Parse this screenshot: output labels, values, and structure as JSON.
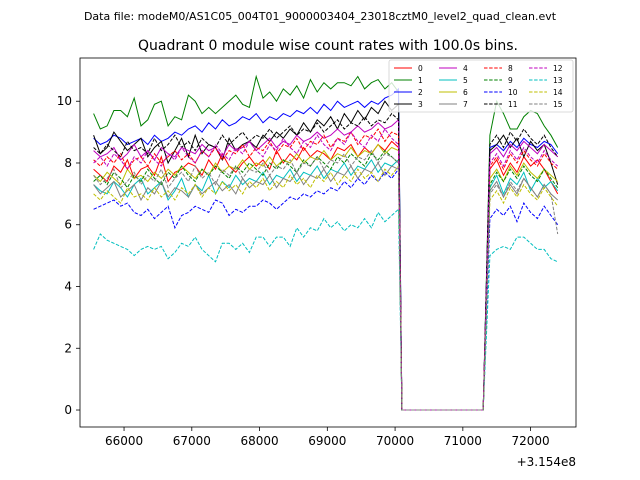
{
  "chart_data": {
    "type": "line",
    "suptitle": "Data file: modeM0/AS1C05_004T01_9000003404_23018cztM0_level2_quad_clean.evt",
    "title": "Quadrant 0 module wise count rates with 100.0s bins.",
    "xlabel": "",
    "ylabel": "",
    "x_offset_label": "+3.154e8",
    "xlim": [
      65350,
      72670
    ],
    "ylim": [
      -0.55,
      11.4
    ],
    "xticks": [
      66000,
      67000,
      68000,
      69000,
      70000,
      71000,
      72000
    ],
    "xtick_labels": [
      "66000",
      "67000",
      "68000",
      "69000",
      "70000",
      "71000",
      "72000"
    ],
    "yticks": [
      0,
      2,
      4,
      6,
      8,
      10
    ],
    "ytick_labels": [
      "0",
      "2",
      "4",
      "6",
      "8",
      "10"
    ],
    "gap": {
      "start": 70100,
      "end": 71300
    },
    "legend": {
      "location": "top-right",
      "columns": 4
    },
    "series": [
      {
        "name": "0",
        "color": "#ff0000",
        "dash": "solid",
        "x_start": 65550,
        "x_end": 72400,
        "step": 100,
        "before": [
          7.8,
          7.6,
          7.4,
          7.9,
          7.7,
          8.1,
          7.5,
          7.8,
          7.9,
          7.6,
          8.2,
          7.4,
          7.7,
          7.8,
          8.0,
          7.9,
          7.6,
          8.1,
          7.8,
          8.3,
          7.9,
          7.7,
          8.0,
          8.2,
          7.9,
          8.1,
          7.8,
          8.4,
          8.0,
          8.3,
          8.1,
          8.5,
          8.2,
          8.4,
          8.3,
          8.1,
          8.5,
          8.4,
          8.6,
          8.2,
          8.5,
          8.3,
          8.6,
          8.4,
          8.7,
          8.5
        ],
        "after": [
          7.8,
          8.1,
          7.6,
          8.0,
          7.7,
          8.2,
          7.9,
          8.1,
          7.8,
          7.4,
          7.0
        ]
      },
      {
        "name": "1",
        "color": "#008000",
        "dash": "solid",
        "x_start": 65550,
        "x_end": 72400,
        "step": 100,
        "before": [
          9.6,
          9.1,
          9.2,
          9.7,
          9.7,
          9.5,
          10.1,
          9.2,
          9.4,
          9.9,
          10.0,
          9.2,
          9.5,
          9.4,
          10.2,
          10.0,
          9.6,
          9.8,
          9.6,
          9.8,
          10.0,
          10.2,
          9.9,
          9.8,
          10.8,
          10.1,
          10.3,
          10.0,
          10.4,
          10.2,
          10.5,
          10.1,
          10.7,
          10.3,
          10.6,
          10.4,
          10.6,
          10.6,
          10.5,
          10.8,
          10.4,
          10.6,
          10.7,
          10.4,
          10.6,
          10.3
        ],
        "after": [
          8.9,
          10.0,
          9.6,
          9.1,
          9.1,
          9.5,
          9.7,
          9.6,
          9.2,
          8.9,
          8.5
        ]
      },
      {
        "name": "2",
        "color": "#0000ff",
        "dash": "solid",
        "x_start": 65550,
        "x_end": 72400,
        "step": 100,
        "before": [
          8.8,
          8.6,
          8.7,
          8.9,
          8.8,
          8.6,
          8.7,
          8.8,
          8.6,
          8.9,
          8.7,
          8.8,
          9.0,
          8.9,
          9.1,
          9.2,
          9.0,
          9.3,
          9.1,
          9.4,
          9.2,
          9.3,
          9.5,
          9.4,
          9.6,
          9.3,
          9.5,
          9.4,
          9.6,
          9.5,
          9.7,
          9.6,
          9.8,
          9.6,
          9.9,
          9.7,
          10.0,
          9.8,
          9.9,
          10.0,
          9.8,
          10.0,
          9.9,
          10.1,
          10.2,
          10.4
        ],
        "after": [
          8.5,
          8.6,
          8.4,
          8.7,
          8.5,
          8.8,
          8.6,
          8.5,
          8.7,
          8.6,
          8.3
        ]
      },
      {
        "name": "3",
        "color": "#000000",
        "dash": "solid",
        "x_start": 65550,
        "x_end": 72400,
        "step": 100,
        "before": [
          8.9,
          8.3,
          8.5,
          9.0,
          8.7,
          8.4,
          8.6,
          8.8,
          8.2,
          8.5,
          8.7,
          8.0,
          8.4,
          8.8,
          8.2,
          8.9,
          8.3,
          8.6,
          8.5,
          8.1,
          8.8,
          8.4,
          8.6,
          8.7,
          8.5,
          8.9,
          8.7,
          9.0,
          8.8,
          9.1,
          8.9,
          9.3,
          9.0,
          9.4,
          9.2,
          9.5,
          9.1,
          9.6,
          9.3,
          9.7,
          9.4,
          9.8,
          9.6,
          10.0,
          9.7,
          9.9
        ],
        "after": [
          8.4,
          8.6,
          8.9,
          8.5,
          8.8,
          8.2,
          8.7,
          8.4,
          8.6,
          8.0,
          7.3
        ]
      },
      {
        "name": "4",
        "color": "#bf00bf",
        "dash": "solid",
        "x_start": 65550,
        "x_end": 72400,
        "step": 100,
        "before": [
          8.4,
          8.2,
          8.3,
          8.5,
          8.1,
          8.3,
          8.6,
          8.2,
          8.4,
          8.1,
          8.5,
          8.3,
          8.2,
          8.5,
          8.4,
          8.3,
          8.6,
          8.4,
          8.5,
          8.2,
          8.6,
          8.4,
          8.5,
          8.7,
          8.4,
          8.6,
          8.8,
          8.5,
          8.7,
          8.6,
          8.9,
          8.7,
          8.8,
          9.0,
          8.8,
          8.9,
          9.1,
          8.9,
          9.0,
          9.2,
          9.0,
          9.1,
          9.3,
          9.1,
          9.2,
          9.4
        ],
        "after": [
          8.3,
          8.5,
          8.2,
          8.6,
          8.4,
          8.7,
          8.5,
          8.3,
          8.6,
          8.4,
          8.2
        ]
      },
      {
        "name": "5",
        "color": "#00bfbf",
        "dash": "solid",
        "x_start": 65550,
        "x_end": 72400,
        "step": 100,
        "before": [
          7.3,
          7.1,
          7.0,
          7.4,
          7.2,
          6.9,
          7.3,
          7.5,
          7.0,
          7.2,
          7.4,
          6.8,
          7.1,
          7.5,
          6.9,
          7.3,
          7.1,
          7.6,
          7.0,
          7.4,
          7.2,
          7.6,
          7.3,
          7.5,
          7.4,
          7.7,
          7.3,
          7.6,
          7.5,
          7.8,
          7.4,
          7.7,
          7.6,
          7.9,
          7.5,
          7.8,
          7.7,
          8.0,
          7.6,
          7.9,
          7.8,
          8.1,
          7.7,
          8.0,
          7.9,
          8.1
        ],
        "after": [
          7.2,
          7.6,
          7.0,
          7.5,
          7.3,
          7.7,
          7.1,
          7.5,
          7.2,
          7.4,
          7.1
        ]
      },
      {
        "name": "6",
        "color": "#bfbf00",
        "dash": "solid",
        "x_start": 65550,
        "x_end": 72400,
        "step": 100,
        "before": [
          7.6,
          7.4,
          7.7,
          7.5,
          7.3,
          7.8,
          7.5,
          7.6,
          7.4,
          7.7,
          7.5,
          7.8,
          7.6,
          7.9,
          7.7,
          7.5,
          7.8,
          7.6,
          8.0,
          7.7,
          7.9,
          7.8,
          8.1,
          7.8,
          8.0,
          7.9,
          8.2,
          7.9,
          8.1,
          8.0,
          8.3,
          8.0,
          8.2,
          8.1,
          8.4,
          8.1,
          8.3,
          8.2,
          8.5,
          8.2,
          8.4,
          8.3,
          8.6,
          8.3,
          8.5,
          8.4
        ],
        "after": [
          7.5,
          7.8,
          7.4,
          7.9,
          7.6,
          8.0,
          7.7,
          7.5,
          7.8,
          7.6,
          7.4
        ]
      },
      {
        "name": "7",
        "color": "#808080",
        "dash": "solid",
        "x_start": 65550,
        "x_end": 72400,
        "step": 100,
        "before": [
          7.3,
          7.0,
          7.2,
          7.4,
          6.9,
          7.1,
          7.3,
          6.8,
          7.2,
          7.0,
          7.4,
          6.9,
          7.2,
          7.1,
          6.9,
          7.3,
          7.0,
          7.2,
          7.4,
          7.1,
          7.3,
          7.0,
          7.5,
          7.2,
          7.4,
          7.3,
          7.6,
          7.2,
          7.5,
          7.4,
          7.7,
          7.3,
          7.6,
          7.5,
          7.8,
          7.4,
          7.7,
          7.6,
          7.9,
          7.5,
          7.8,
          7.7,
          8.0,
          7.6,
          7.9,
          7.8
        ],
        "after": [
          7.1,
          7.4,
          6.9,
          7.3,
          7.0,
          7.5,
          7.2,
          6.9,
          7.3,
          7.0,
          6.8
        ]
      },
      {
        "name": "8",
        "color": "#ff0000",
        "dash": "dashed",
        "x_start": 65550,
        "x_end": 72400,
        "step": 100,
        "before": [
          8.1,
          7.9,
          8.2,
          8.0,
          8.3,
          7.8,
          8.1,
          8.2,
          7.9,
          8.3,
          8.0,
          8.2,
          8.4,
          8.1,
          8.3,
          8.0,
          8.4,
          8.2,
          8.5,
          8.1,
          8.4,
          8.3,
          8.6,
          8.2,
          8.5,
          8.4,
          8.7,
          8.3,
          8.6,
          8.5,
          8.8,
          8.4,
          8.7,
          8.6,
          8.9,
          8.5,
          8.8,
          8.7,
          9.0,
          8.6,
          8.9,
          8.8,
          9.1,
          8.7,
          9.0,
          8.9
        ],
        "after": [
          7.9,
          8.2,
          7.8,
          8.3,
          8.0,
          8.4,
          8.1,
          7.9,
          8.3,
          8.0,
          7.8
        ]
      },
      {
        "name": "9",
        "color": "#008000",
        "dash": "dashed",
        "x_start": 65550,
        "x_end": 72400,
        "step": 100,
        "before": [
          7.4,
          7.6,
          7.3,
          7.7,
          7.5,
          7.2,
          7.6,
          7.4,
          7.8,
          7.5,
          7.3,
          7.7,
          7.5,
          7.9,
          7.6,
          7.4,
          7.8,
          7.6,
          7.9,
          7.7,
          7.5,
          7.9,
          7.7,
          8.0,
          7.8,
          7.6,
          8.0,
          7.8,
          8.1,
          7.9,
          7.7,
          8.1,
          7.9,
          8.2,
          8.0,
          7.8,
          8.2,
          8.0,
          8.3,
          8.1,
          7.9,
          8.3,
          8.1,
          8.4,
          8.2,
          8.0
        ],
        "after": [
          7.3,
          7.7,
          7.4,
          7.8,
          7.5,
          7.9,
          7.6,
          7.4,
          7.8,
          7.5,
          7.2
        ]
      },
      {
        "name": "10",
        "color": "#0000ff",
        "dash": "dashed",
        "x_start": 65550,
        "x_end": 72400,
        "step": 100,
        "before": [
          6.5,
          6.6,
          6.7,
          6.8,
          6.6,
          6.7,
          6.4,
          6.3,
          6.5,
          6.2,
          6.4,
          6.6,
          5.9,
          6.3,
          6.4,
          6.6,
          6.5,
          6.4,
          6.8,
          6.7,
          6.3,
          6.5,
          6.4,
          6.6,
          6.6,
          6.8,
          6.7,
          6.5,
          6.7,
          6.9,
          6.8,
          7.0,
          6.9,
          7.1,
          7.0,
          7.2,
          7.1,
          7.4,
          7.2,
          7.5,
          7.3,
          7.6,
          7.4,
          7.7,
          7.5,
          7.8
        ],
        "after": [
          6.2,
          6.5,
          6.3,
          6.6,
          6.1,
          6.7,
          6.4,
          6.2,
          6.6,
          6.3,
          6.0
        ]
      },
      {
        "name": "11",
        "color": "#000000",
        "dash": "dashed",
        "x_start": 65550,
        "x_end": 72400,
        "step": 100,
        "before": [
          8.5,
          8.3,
          8.6,
          8.4,
          8.2,
          8.7,
          8.4,
          8.5,
          8.3,
          8.8,
          8.4,
          8.6,
          8.9,
          8.5,
          8.7,
          8.4,
          8.8,
          8.6,
          8.5,
          8.9,
          8.6,
          8.8,
          9.0,
          8.7,
          8.9,
          8.8,
          9.1,
          8.8,
          9.0,
          9.2,
          8.9,
          9.1,
          9.0,
          9.3,
          9.0,
          9.2,
          9.4,
          9.1,
          9.3,
          9.2,
          9.5,
          9.2,
          9.4,
          9.3,
          9.6,
          9.4
        ],
        "after": [
          8.6,
          8.9,
          8.5,
          9.0,
          8.7,
          9.1,
          8.8,
          8.6,
          8.9,
          8.5,
          8.2
        ]
      },
      {
        "name": "12",
        "color": "#bf00bf",
        "dash": "dashed",
        "x_start": 65550,
        "x_end": 72400,
        "step": 100,
        "before": [
          8.0,
          8.2,
          7.9,
          8.3,
          8.1,
          7.8,
          8.2,
          8.0,
          8.4,
          8.1,
          7.9,
          8.3,
          8.1,
          8.5,
          8.2,
          8.0,
          8.4,
          8.2,
          8.6,
          8.3,
          8.1,
          8.5,
          8.3,
          8.7,
          8.4,
          8.2,
          8.6,
          8.4,
          8.8,
          8.5,
          8.3,
          8.7,
          8.5,
          8.9,
          8.6,
          8.4,
          8.8,
          8.6,
          9.0,
          8.7,
          8.5,
          8.9,
          8.7,
          9.1,
          8.8,
          8.6
        ],
        "after": [
          8.0,
          8.3,
          7.9,
          8.4,
          8.1,
          8.5,
          8.2,
          8.0,
          8.4,
          8.1,
          7.9
        ]
      },
      {
        "name": "13",
        "color": "#00bfbf",
        "dash": "dashed",
        "x_start": 65550,
        "x_end": 72400,
        "step": 100,
        "before": [
          5.2,
          5.7,
          5.5,
          5.4,
          5.3,
          5.2,
          5.0,
          5.2,
          5.3,
          5.2,
          5.3,
          4.9,
          5.1,
          5.4,
          5.3,
          5.6,
          5.2,
          5.0,
          4.8,
          5.4,
          5.4,
          5.2,
          5.4,
          5.1,
          5.6,
          5.6,
          5.3,
          5.6,
          5.6,
          5.3,
          5.9,
          5.6,
          5.9,
          5.8,
          6.2,
          5.9,
          6.1,
          5.8,
          6.0,
          5.9,
          6.2,
          5.9,
          6.4,
          6.1,
          6.3,
          6.5
        ],
        "after": [
          5.0,
          5.2,
          5.3,
          5.2,
          5.6,
          5.6,
          5.4,
          5.2,
          5.2,
          4.9,
          4.8
        ]
      },
      {
        "name": "14",
        "color": "#bfbf00",
        "dash": "dashed",
        "x_start": 65550,
        "x_end": 72400,
        "step": 100,
        "before": [
          7.0,
          6.8,
          7.1,
          6.9,
          6.7,
          7.2,
          6.9,
          7.0,
          6.8,
          7.2,
          6.9,
          7.1,
          6.8,
          7.2,
          7.0,
          7.3,
          6.9,
          7.2,
          7.0,
          7.4,
          7.1,
          7.3,
          7.0,
          7.4,
          7.2,
          7.5,
          7.1,
          7.4,
          7.2,
          7.6,
          7.3,
          7.5,
          7.2,
          7.6,
          7.4,
          7.7,
          7.3,
          7.6,
          7.4,
          7.8,
          7.5,
          7.7,
          7.4,
          7.8,
          7.6,
          7.9
        ],
        "after": [
          6.8,
          7.1,
          6.7,
          7.2,
          6.9,
          7.3,
          7.0,
          6.8,
          7.2,
          6.9,
          6.6
        ]
      },
      {
        "name": "15",
        "color": "#808080",
        "dash": "dashed",
        "x_start": 65550,
        "x_end": 72400,
        "step": 100,
        "before": [
          7.6,
          7.3,
          7.5,
          7.8,
          7.2,
          7.4,
          7.7,
          7.3,
          7.6,
          7.4,
          7.8,
          7.2,
          7.5,
          7.7,
          7.4,
          7.9,
          7.5,
          7.7,
          7.3,
          7.8,
          7.6,
          7.9,
          7.5,
          7.8,
          7.7,
          8.0,
          7.6,
          7.9,
          7.8,
          8.1,
          7.7,
          8.0,
          7.9,
          8.2,
          7.8,
          8.1,
          8.0,
          8.3,
          7.9,
          8.2,
          8.1,
          8.4,
          8.0,
          8.3,
          8.2,
          8.0
        ],
        "after": [
          7.0,
          7.3,
          6.9,
          7.4,
          7.1,
          7.5,
          7.2,
          6.9,
          7.3,
          7.0,
          5.7
        ]
      }
    ]
  }
}
